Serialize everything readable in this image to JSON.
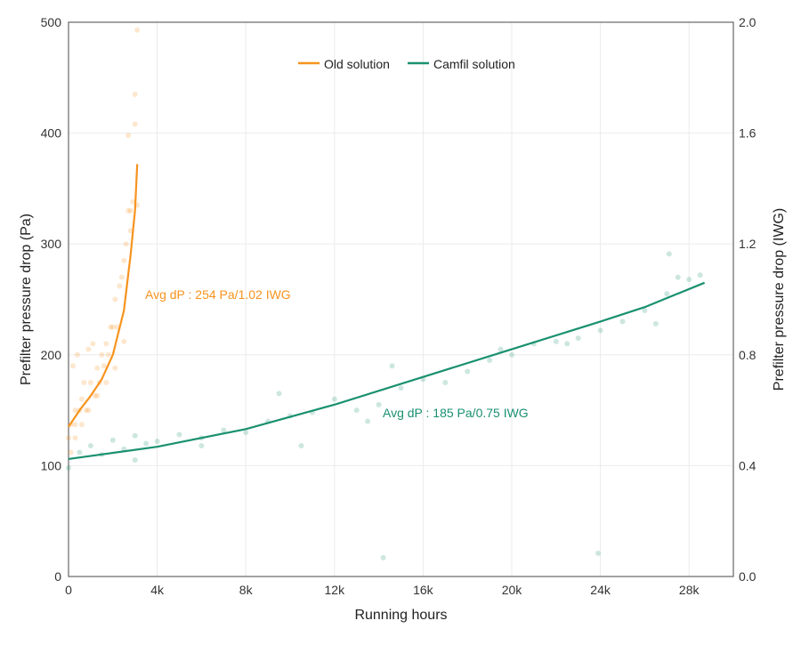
{
  "chart_data": {
    "type": "line",
    "title": "",
    "xlabel": "Running hours",
    "ylabel": "Prefilter pressure drop (Pa)",
    "ylabel_right": "Prefilter pressure drop (IWG)",
    "xlim": [
      0,
      30000
    ],
    "ylim": [
      0,
      500
    ],
    "ylim_right": [
      0,
      2.0
    ],
    "x_ticks": [
      0,
      4000,
      8000,
      12000,
      16000,
      20000,
      24000,
      28000
    ],
    "x_tick_labels": [
      "0",
      "4k",
      "8k",
      "12k",
      "16k",
      "20k",
      "24k",
      "28k"
    ],
    "y_ticks": [
      0,
      100,
      200,
      300,
      400,
      500
    ],
    "y_tick_labels": [
      "0",
      "100",
      "200",
      "300",
      "400",
      "500"
    ],
    "y_right_ticks": [
      0,
      0.4,
      0.8,
      1.2,
      1.6,
      2.0
    ],
    "y_right_tick_labels": [
      "0.0",
      "0.4",
      "0.8",
      "1.2",
      "1.6",
      "2.0"
    ],
    "grid": true,
    "legend_position": "top-center",
    "series": [
      {
        "name": "Old solution",
        "color": "#f7931e",
        "trend": {
          "x": [
            0,
            500,
            1000,
            1500,
            2000,
            2500,
            2800,
            3000,
            3100
          ],
          "y": [
            135,
            150,
            163,
            178,
            200,
            240,
            290,
            330,
            372
          ]
        },
        "scatter": {
          "x": [
            0,
            100,
            200,
            300,
            300,
            400,
            500,
            600,
            700,
            800,
            900,
            1000,
            1100,
            1200,
            1300,
            1400,
            1500,
            1600,
            1700,
            1800,
            1900,
            2000,
            2100,
            2200,
            2300,
            2400,
            2500,
            2600,
            2700,
            2800,
            2900,
            3000,
            3100,
            2700,
            2800,
            3000,
            3100,
            100,
            300,
            600,
            900,
            1300,
            1700,
            2100,
            2500
          ],
          "y": [
            125,
            137,
            190,
            137,
            150,
            200,
            150,
            160,
            175,
            150,
            205,
            175,
            210,
            163,
            188,
            175,
            200,
            190,
            210,
            200,
            225,
            225,
            250,
            225,
            262,
            270,
            285,
            300,
            398,
            330,
            338,
            435,
            493,
            330,
            312,
            408,
            335,
            112,
            125,
            137,
            150,
            163,
            175,
            188,
            212
          ]
        },
        "annotation": "Avg dP : 254 Pa/1.02 IWG"
      },
      {
        "name": "Camfil solution",
        "color": "#1a9070",
        "trend": {
          "x": [
            0,
            4000,
            8000,
            12000,
            16000,
            20000,
            24000,
            26000,
            28700
          ],
          "y": [
            106,
            117,
            133,
            155,
            180,
            205,
            230,
            243,
            265
          ]
        },
        "scatter": {
          "x": [
            0,
            500,
            1000,
            1500,
            2000,
            2500,
            3000,
            3500,
            4000,
            5000,
            6000,
            7000,
            8000,
            9000,
            9500,
            10000,
            11000,
            12000,
            13000,
            14000,
            14200,
            14600,
            15000,
            16000,
            17000,
            18000,
            19000,
            20000,
            21000,
            22000,
            23000,
            23900,
            24000,
            25000,
            26000,
            26500,
            27000,
            27100,
            27500,
            28000,
            28500,
            3000,
            6000,
            10500,
            13500,
            19500,
            22500
          ],
          "y": [
            98,
            112,
            118,
            110,
            123,
            115,
            127,
            120,
            122,
            128,
            125,
            132,
            130,
            140,
            165,
            145,
            148,
            160,
            150,
            155,
            17,
            190,
            170,
            178,
            175,
            185,
            195,
            200,
            210,
            212,
            215,
            21,
            222,
            230,
            240,
            228,
            255,
            291,
            270,
            268,
            272,
            105,
            118,
            118,
            140,
            205,
            210
          ]
        },
        "annotation": "Avg dP : 185 Pa/0.75 IWG"
      }
    ]
  }
}
